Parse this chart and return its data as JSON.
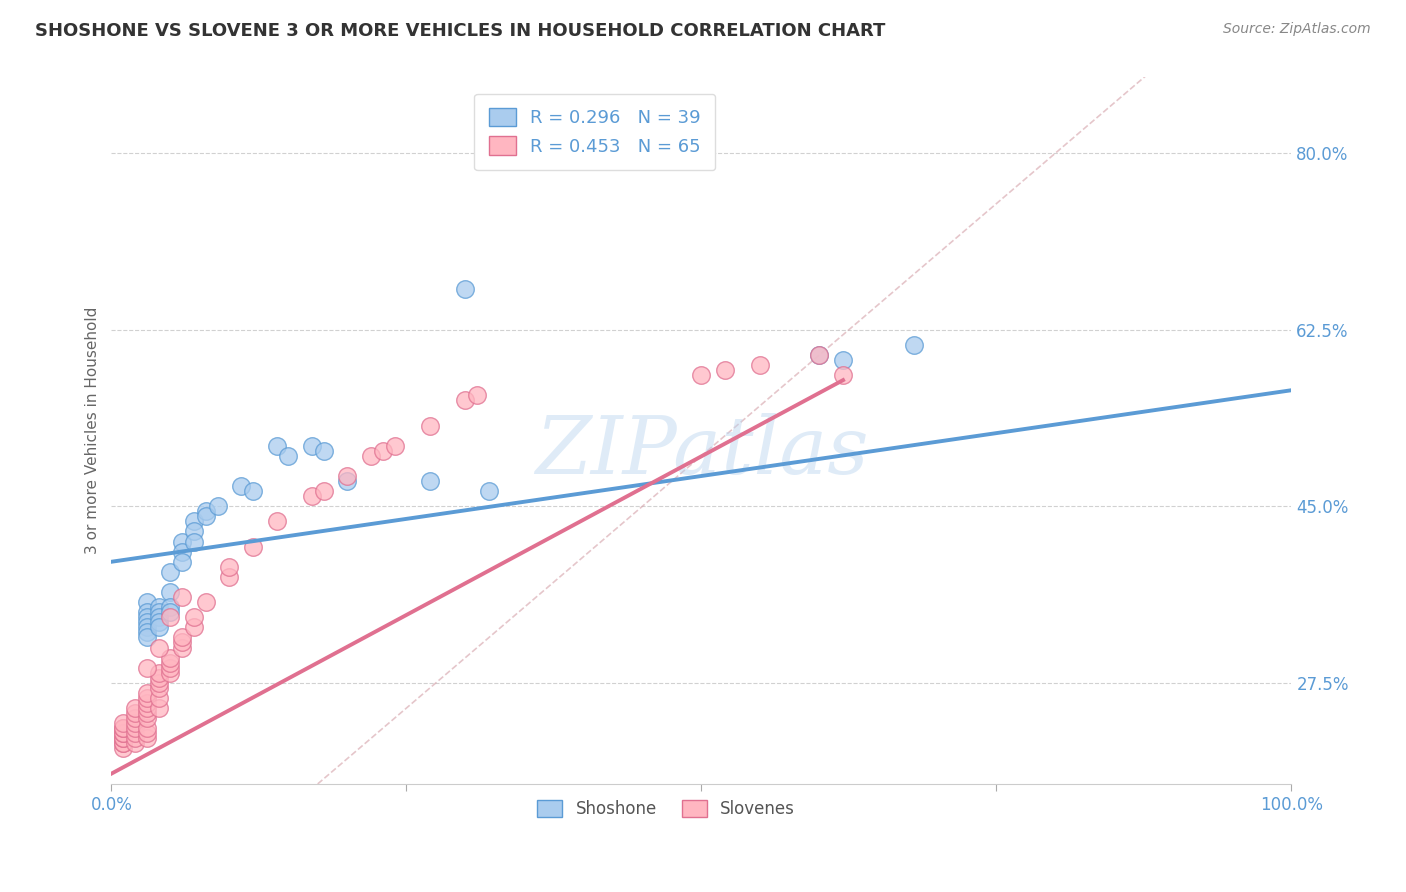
{
  "title": "SHOSHONE VS SLOVENE 3 OR MORE VEHICLES IN HOUSEHOLD CORRELATION CHART",
  "source_text": "Source: ZipAtlas.com",
  "ylabel": "3 or more Vehicles in Household",
  "xlim": [
    0.0,
    1.0
  ],
  "ylim": [
    0.175,
    0.875
  ],
  "y_ticks": [
    0.275,
    0.45,
    0.625,
    0.8
  ],
  "y_tick_labels": [
    "27.5%",
    "45.0%",
    "62.5%",
    "80.0%"
  ],
  "background_color": "#ffffff",
  "grid_color": "#cccccc",
  "axis_color": "#5b9bd5",
  "watermark": "ZIPatlas",
  "shoshone_color": "#aaccee",
  "shoshone_edge_color": "#5b9bd5",
  "slovene_color": "#ffb6c1",
  "slovene_edge_color": "#e07090",
  "shoshone_R": 0.296,
  "shoshone_N": 39,
  "slovene_R": 0.453,
  "slovene_N": 65,
  "shoshone_x": [
    0.03,
    0.03,
    0.03,
    0.03,
    0.03,
    0.03,
    0.03,
    0.04,
    0.04,
    0.04,
    0.04,
    0.04,
    0.05,
    0.05,
    0.05,
    0.05,
    0.06,
    0.06,
    0.06,
    0.07,
    0.07,
    0.07,
    0.08,
    0.08,
    0.09,
    0.11,
    0.12,
    0.14,
    0.15,
    0.17,
    0.18,
    0.2,
    0.27,
    0.32,
    0.38,
    0.6,
    0.62,
    0.68,
    0.3
  ],
  "shoshone_y": [
    0.355,
    0.345,
    0.34,
    0.335,
    0.33,
    0.325,
    0.32,
    0.35,
    0.345,
    0.34,
    0.335,
    0.33,
    0.385,
    0.365,
    0.35,
    0.345,
    0.415,
    0.405,
    0.395,
    0.435,
    0.425,
    0.415,
    0.445,
    0.44,
    0.45,
    0.47,
    0.465,
    0.51,
    0.5,
    0.51,
    0.505,
    0.475,
    0.475,
    0.465,
    0.8,
    0.6,
    0.595,
    0.61,
    0.665
  ],
  "slovene_x": [
    0.01,
    0.01,
    0.01,
    0.01,
    0.01,
    0.01,
    0.01,
    0.01,
    0.01,
    0.01,
    0.02,
    0.02,
    0.02,
    0.02,
    0.02,
    0.02,
    0.02,
    0.02,
    0.03,
    0.03,
    0.03,
    0.03,
    0.03,
    0.03,
    0.03,
    0.03,
    0.03,
    0.04,
    0.04,
    0.04,
    0.04,
    0.04,
    0.04,
    0.05,
    0.05,
    0.05,
    0.05,
    0.06,
    0.06,
    0.06,
    0.07,
    0.07,
    0.08,
    0.1,
    0.1,
    0.12,
    0.14,
    0.17,
    0.18,
    0.2,
    0.22,
    0.23,
    0.24,
    0.27,
    0.3,
    0.31,
    0.5,
    0.52,
    0.55,
    0.6,
    0.62,
    0.03,
    0.04,
    0.05,
    0.06
  ],
  "slovene_y": [
    0.21,
    0.215,
    0.215,
    0.22,
    0.22,
    0.225,
    0.225,
    0.23,
    0.23,
    0.235,
    0.215,
    0.22,
    0.225,
    0.23,
    0.235,
    0.24,
    0.245,
    0.25,
    0.22,
    0.225,
    0.23,
    0.24,
    0.245,
    0.25,
    0.255,
    0.26,
    0.265,
    0.25,
    0.26,
    0.27,
    0.275,
    0.28,
    0.285,
    0.285,
    0.29,
    0.295,
    0.3,
    0.31,
    0.315,
    0.32,
    0.33,
    0.34,
    0.355,
    0.38,
    0.39,
    0.41,
    0.435,
    0.46,
    0.465,
    0.48,
    0.5,
    0.505,
    0.51,
    0.53,
    0.555,
    0.56,
    0.58,
    0.585,
    0.59,
    0.6,
    0.58,
    0.29,
    0.31,
    0.34,
    0.36
  ],
  "shoshone_trend_x": [
    0.0,
    1.0
  ],
  "shoshone_trend_y": [
    0.395,
    0.565
  ],
  "slovene_trend_x": [
    0.0,
    0.62
  ],
  "slovene_trend_y": [
    0.185,
    0.575
  ],
  "legend_color": "#5b9bd5",
  "legend_fontsize": 13
}
